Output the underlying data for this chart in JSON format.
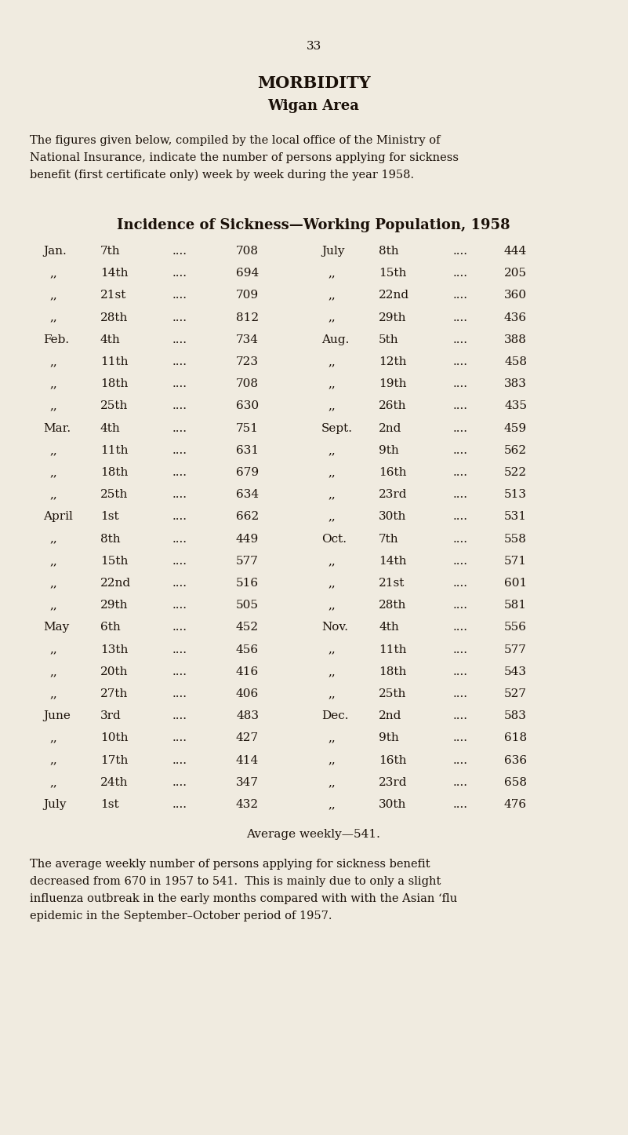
{
  "page_number": "33",
  "title1": "MORBIDITY",
  "title2": "Wigan Area",
  "intro_line1": "The figures given below, compiled by the local office of the Ministry of",
  "intro_line2": "National Insurance, indicate the number of persons applying for sickness",
  "intro_line3": "benefit (first certificate only) week by week during the year 1958.",
  "table_title": "Incidence of Sickness—Working Population, 1958",
  "left_col": [
    [
      "Jan.",
      "7th",
      "708"
    ],
    [
      ",,",
      "14th",
      "694"
    ],
    [
      ",,",
      "21st",
      "709"
    ],
    [
      ",,",
      "28th",
      "812"
    ],
    [
      "Feb.",
      "4th",
      "734"
    ],
    [
      ",,",
      "11th",
      "723"
    ],
    [
      ",,",
      "18th",
      "708"
    ],
    [
      ",,",
      "25th",
      "630"
    ],
    [
      "Mar.",
      "4th",
      "751"
    ],
    [
      ",,",
      "11th",
      "631"
    ],
    [
      ",,",
      "18th",
      "679"
    ],
    [
      ",,",
      "25th",
      "634"
    ],
    [
      "April",
      "1st",
      "662"
    ],
    [
      ",,",
      "8th",
      "449"
    ],
    [
      ",,",
      "15th",
      "577"
    ],
    [
      ",,",
      "22nd",
      "516"
    ],
    [
      ",,",
      "29th",
      "505"
    ],
    [
      "May",
      "6th",
      "452"
    ],
    [
      ",,",
      "13th",
      "456"
    ],
    [
      ",,",
      "20th",
      "416"
    ],
    [
      ",,",
      "27th",
      "406"
    ],
    [
      "June",
      "3rd",
      "483"
    ],
    [
      ",,",
      "10th",
      "427"
    ],
    [
      ",,",
      "17th",
      "414"
    ],
    [
      ",,",
      "24th",
      "347"
    ],
    [
      "July",
      "1st",
      "432"
    ]
  ],
  "right_col": [
    [
      "July",
      "8th",
      "444"
    ],
    [
      ",,",
      "15th",
      "205"
    ],
    [
      ",,",
      "22nd",
      "360"
    ],
    [
      ",,",
      "29th",
      "436"
    ],
    [
      "Aug.",
      "5th",
      "388"
    ],
    [
      ",,",
      "12th",
      "458"
    ],
    [
      ",,",
      "19th",
      "383"
    ],
    [
      ",,",
      "26th",
      "435"
    ],
    [
      "Sept.",
      "2nd",
      "459"
    ],
    [
      ",,",
      "9th",
      "562"
    ],
    [
      ",,",
      "16th",
      "522"
    ],
    [
      ",,",
      "23rd",
      "513"
    ],
    [
      ",,",
      "30th",
      "531"
    ],
    [
      "Oct.",
      "7th",
      "558"
    ],
    [
      ",,",
      "14th",
      "571"
    ],
    [
      ",,",
      "21st",
      "601"
    ],
    [
      ",,",
      "28th",
      "581"
    ],
    [
      "Nov.",
      "4th",
      "556"
    ],
    [
      ",,",
      "11th",
      "577"
    ],
    [
      ",,",
      "18th",
      "543"
    ],
    [
      ",,",
      "25th",
      "527"
    ],
    [
      "Dec.",
      "2nd",
      "583"
    ],
    [
      ",,",
      "9th",
      "618"
    ],
    [
      ",,",
      "16th",
      "636"
    ],
    [
      ",,",
      "23rd",
      "658"
    ],
    [
      ",,",
      "30th",
      "476"
    ]
  ],
  "average_line": "Average weekly—541.",
  "footer_line1": "The average weekly number of persons applying for sickness benefit",
  "footer_line2": "decreased from 670 in 1957 to 541.  This is mainly due to only a slight",
  "footer_line3": "influenza outbreak in the early months compared with with the Asian ‘flu",
  "footer_line4": "epidemic in the September–October period of 1957.",
  "bg_color": "#f0ebe0",
  "text_color": "#1a1008",
  "page_num_fontsize": 11,
  "title1_fontsize": 15,
  "title2_fontsize": 13,
  "intro_fontsize": 10.5,
  "table_title_fontsize": 13,
  "table_fontsize": 11,
  "footer_fontsize": 10.5
}
